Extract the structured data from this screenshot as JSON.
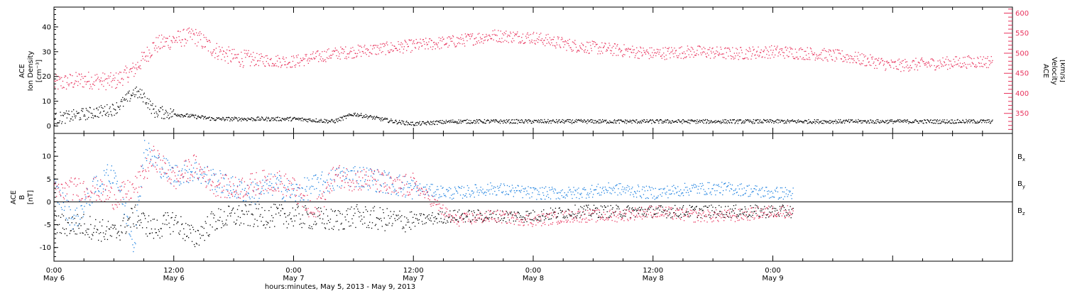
{
  "chart_data": [
    {
      "type": "scatter",
      "panel": "top",
      "ylabel_left": [
        "ACE",
        "Ion Density",
        "[cm⁻³]"
      ],
      "ylabel_right": [
        "ACE",
        "Velocity",
        "[km/s]"
      ],
      "ylim_left": [
        -3,
        48
      ],
      "ylim_right": [
        300,
        615
      ],
      "yticks_left": [
        "0",
        "10",
        "20",
        "30",
        "40"
      ],
      "yticks_left_values": [
        0,
        10,
        20,
        30,
        40
      ],
      "yticks_right": [
        "350",
        "400",
        "450",
        "500",
        "550",
        "600"
      ],
      "yticks_right_values": [
        350,
        400,
        450,
        500,
        550,
        600
      ],
      "series": [
        {
          "axis": "left",
          "color": "#000000",
          "x": [
            0,
            3,
            6,
            7,
            8,
            9,
            10,
            12,
            14,
            16,
            20,
            24,
            28,
            30,
            34,
            36,
            40,
            44,
            48,
            52,
            56,
            60,
            64,
            68,
            72,
            76,
            80,
            84,
            88,
            92,
            94
          ],
          "y": [
            3,
            5,
            7,
            10,
            14,
            12,
            6,
            5,
            4,
            3,
            3,
            3,
            2,
            5,
            2,
            1,
            2,
            2,
            2,
            2,
            2,
            2,
            2,
            2,
            2,
            2,
            2,
            2,
            2,
            2,
            2
          ]
        },
        {
          "axis": "right",
          "color": "#e8325c",
          "x": [
            0,
            3,
            6,
            7,
            8,
            9,
            10,
            12,
            14,
            16,
            18,
            20,
            24,
            28,
            32,
            36,
            40,
            44,
            48,
            52,
            56,
            60,
            64,
            68,
            72,
            76,
            80,
            84,
            88,
            92,
            94
          ],
          "y": [
            425,
            435,
            430,
            445,
            460,
            490,
            520,
            535,
            545,
            510,
            490,
            485,
            480,
            500,
            510,
            520,
            530,
            545,
            540,
            520,
            510,
            500,
            505,
            500,
            505,
            500,
            490,
            470,
            475,
            480,
            480
          ]
        }
      ]
    },
    {
      "type": "scatter",
      "panel": "bottom",
      "ylabel": [
        "ACE",
        "B",
        "[nT]"
      ],
      "ylim": [
        -13,
        15
      ],
      "yticks": [
        "-10",
        "-5",
        "0",
        "5",
        "10"
      ],
      "yticks_values": [
        -10,
        -5,
        0,
        5,
        10
      ],
      "xlabel": "hours:minutes, May  5, 2013 - May  9, 2013",
      "xlim": [
        0,
        96
      ],
      "xticks": [
        {
          "t": 0,
          "time": "0:00",
          "date": "May 6"
        },
        {
          "t": 12,
          "time": "12:00",
          "date": "May 6"
        },
        {
          "t": 24,
          "time": "0:00",
          "date": "May 7"
        },
        {
          "t": 36,
          "time": "12:00",
          "date": "May 7"
        },
        {
          "t": 48,
          "time": "0:00",
          "date": "May 8"
        },
        {
          "t": 60,
          "time": "12:00",
          "date": "May 8"
        },
        {
          "t": 72,
          "time": "0:00",
          "date": "May 9"
        }
      ],
      "series": [
        {
          "name": "B",
          "sub": "x",
          "color": "#000000",
          "x": [
            0,
            3,
            6,
            8,
            10,
            12,
            14,
            16,
            18,
            20,
            24,
            28,
            30,
            34,
            36,
            40,
            44,
            48,
            52,
            56,
            60,
            64,
            68,
            72,
            74
          ],
          "y": [
            -5,
            -5,
            -7,
            -3,
            -6,
            -4,
            -8,
            -4,
            -3,
            -3,
            -3,
            -4,
            -3,
            -4,
            -4,
            -3,
            -3,
            -3,
            -2,
            -2,
            -2,
            -2,
            -2,
            -2,
            -2
          ]
        },
        {
          "name": "B",
          "sub": "y",
          "color": "#1f82e0",
          "x": [
            0,
            2,
            4,
            6,
            8,
            9,
            10,
            12,
            14,
            16,
            18,
            20,
            22,
            24,
            28,
            30,
            34,
            36,
            40,
            44,
            48,
            52,
            56,
            60,
            64,
            68,
            72,
            74
          ],
          "y": [
            3,
            -4,
            3,
            7,
            -9,
            12,
            9,
            6,
            7,
            5,
            3,
            2,
            4,
            2,
            5,
            6,
            4,
            3,
            2,
            3,
            2,
            2,
            3,
            2,
            3,
            3,
            2,
            2
          ]
        },
        {
          "name": "B",
          "sub": "z",
          "color": "#e8325c",
          "x": [
            0,
            2,
            4,
            6,
            8,
            10,
            12,
            14,
            16,
            18,
            20,
            22,
            24,
            26,
            28,
            30,
            32,
            34,
            36,
            40,
            44,
            48,
            52,
            56,
            60,
            64,
            68,
            72,
            74
          ],
          "y": [
            2,
            3,
            3,
            1,
            3,
            10,
            5,
            8,
            4,
            3,
            4,
            5,
            3,
            -3,
            6,
            5,
            5,
            3,
            4,
            -4,
            -3,
            -4,
            -3,
            -3,
            -2,
            -3,
            -3,
            -2,
            -2
          ]
        }
      ]
    }
  ]
}
